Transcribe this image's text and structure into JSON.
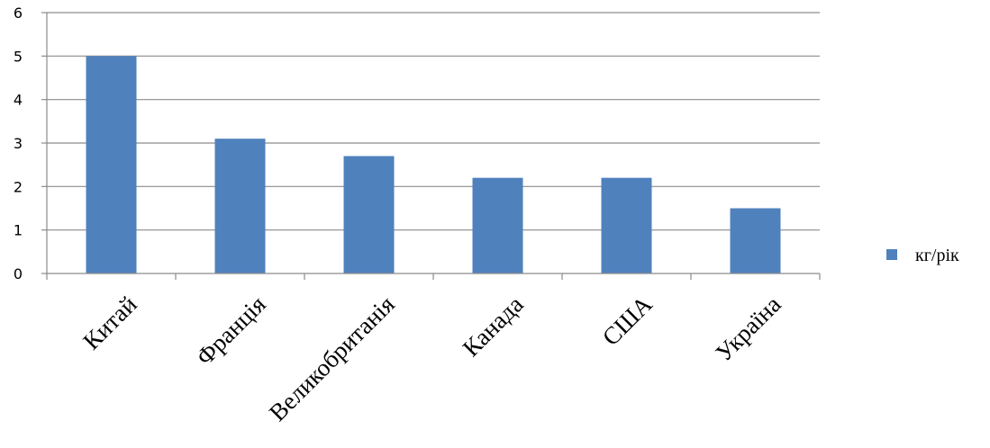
{
  "chart_data": {
    "type": "bar",
    "title": "",
    "xlabel": "",
    "ylabel": "",
    "categories": [
      "Китай",
      "Франція",
      "Великобританія",
      "Канада",
      "США",
      "Україна"
    ],
    "series": [
      {
        "name": "кг/рік",
        "values": [
          5,
          3.1,
          2.7,
          2.2,
          2.2,
          1.5
        ],
        "color": "#4f81bd"
      }
    ],
    "ylim": [
      0,
      6
    ],
    "yticks": [
      "0",
      "1",
      "2",
      "3",
      "4",
      "5",
      "6"
    ],
    "grid": true,
    "legend_position": "right"
  }
}
